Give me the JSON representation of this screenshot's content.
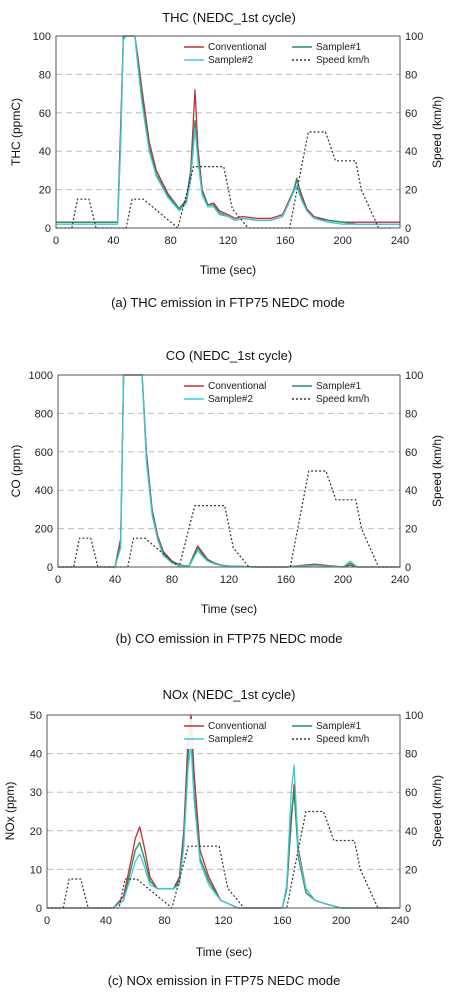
{
  "chart_data": [
    {
      "type": "line",
      "title": "THC (NEDC_1st cycle)",
      "xlabel": "Time (sec)",
      "ylabel": "THC (ppmC)",
      "y2label": "Speed (km/h)",
      "caption": "(a) THC emission in FTP75 NEDC mode",
      "xlim": [
        0,
        240
      ],
      "ylim": [
        0,
        100
      ],
      "y2lim": [
        0,
        100
      ],
      "xticks": [
        "0",
        "40",
        "80",
        "120",
        "160",
        "200",
        "240"
      ],
      "yticks": [
        "0",
        "20",
        "40",
        "60",
        "80",
        "100"
      ],
      "y2ticks": [
        "0",
        "20",
        "40",
        "60",
        "80",
        "100"
      ],
      "legend_position": "top-right",
      "series": [
        {
          "name": "Conventional",
          "color": "#c0303a",
          "style": "solid",
          "axis": "left",
          "x": [
            0,
            43,
            45,
            47,
            49,
            52,
            55,
            57,
            60,
            65,
            70,
            78,
            86,
            91,
            94,
            97,
            99,
            102,
            106,
            110,
            114,
            120,
            125,
            130,
            140,
            150,
            158,
            163,
            166,
            168,
            171,
            175,
            180,
            190,
            200,
            210,
            220,
            240
          ],
          "y": [
            3,
            3,
            50,
            100,
            100,
            100,
            100,
            90,
            72,
            45,
            30,
            18,
            10,
            15,
            30,
            72,
            42,
            20,
            12,
            13,
            9,
            7,
            5,
            6,
            5,
            5,
            7,
            15,
            20,
            25,
            18,
            10,
            6,
            4,
            3,
            3,
            3,
            3
          ]
        },
        {
          "name": "Sample#1",
          "color": "#2e8b57",
          "style": "solid",
          "axis": "left",
          "x": [
            0,
            43,
            45,
            47,
            49,
            52,
            55,
            57,
            60,
            65,
            70,
            78,
            86,
            91,
            94,
            97,
            99,
            102,
            106,
            110,
            114,
            120,
            125,
            130,
            140,
            150,
            158,
            163,
            166,
            168,
            171,
            175,
            180,
            190,
            200,
            210,
            220,
            240
          ],
          "y": [
            3,
            3,
            45,
            100,
            100,
            100,
            100,
            88,
            68,
            42,
            28,
            17,
            10,
            14,
            28,
            56,
            38,
            19,
            12,
            12,
            8,
            6,
            4,
            5,
            4,
            4,
            6,
            14,
            20,
            26,
            16,
            9,
            5,
            4,
            3,
            2,
            2,
            2
          ]
        },
        {
          "name": "Sample#2",
          "color": "#40c8d8",
          "style": "solid",
          "axis": "left",
          "x": [
            0,
            43,
            45,
            47,
            49,
            52,
            55,
            57,
            60,
            65,
            70,
            78,
            86,
            91,
            94,
            97,
            99,
            102,
            106,
            110,
            114,
            120,
            125,
            130,
            140,
            150,
            158,
            163,
            166,
            168,
            171,
            175,
            180,
            190,
            200,
            210,
            220,
            240
          ],
          "y": [
            2,
            2,
            40,
            98,
            100,
            100,
            100,
            85,
            65,
            40,
            27,
            16,
            9,
            13,
            25,
            52,
            35,
            17,
            11,
            11,
            7,
            6,
            4,
            5,
            4,
            4,
            6,
            14,
            19,
            22,
            15,
            9,
            5,
            3,
            2,
            2,
            2,
            2
          ]
        },
        {
          "name": "Speed km/h",
          "color": "#333333",
          "style": "dotted",
          "axis": "right",
          "x": [
            0,
            11,
            15,
            23,
            28,
            49,
            53,
            61,
            85,
            96,
            117,
            123,
            134,
            143,
            155,
            163,
            176,
            188,
            195,
            201,
            209,
            213,
            225,
            234
          ],
          "y": [
            0,
            0,
            15,
            15,
            0,
            0,
            15,
            15,
            0,
            32,
            32,
            10,
            0,
            0,
            0,
            0,
            50,
            50,
            35,
            35,
            35,
            20,
            0,
            0
          ]
        }
      ]
    },
    {
      "type": "line",
      "title": "CO (NEDC_1st cycle)",
      "xlabel": "Time (sec)",
      "ylabel": "CO (ppm)",
      "y2label": "Speed (km/h)",
      "caption": "(b) CO emission in FTP75 NEDC mode",
      "xlim": [
        0,
        240
      ],
      "ylim": [
        0,
        1000
      ],
      "y2lim": [
        0,
        100
      ],
      "xticks": [
        "0",
        "40",
        "80",
        "120",
        "160",
        "200",
        "240"
      ],
      "yticks": [
        "0",
        "200",
        "400",
        "600",
        "800",
        "1000"
      ],
      "y2ticks": [
        "0",
        "20",
        "40",
        "60",
        "80",
        "100"
      ],
      "legend_position": "top-right",
      "series": [
        {
          "name": "Conventional",
          "color": "#c0303a",
          "style": "solid",
          "axis": "left",
          "x": [
            0,
            40,
            44,
            46,
            48,
            52,
            56,
            59,
            62,
            66,
            70,
            74,
            80,
            86,
            92,
            95,
            98,
            101,
            105,
            110,
            115,
            120,
            140,
            160,
            180,
            200,
            205,
            210,
            220,
            240
          ],
          "y": [
            0,
            0,
            150,
            1000,
            1000,
            1000,
            1000,
            1000,
            600,
            300,
            160,
            80,
            30,
            10,
            5,
            60,
            110,
            80,
            40,
            20,
            10,
            5,
            0,
            0,
            15,
            0,
            10,
            0,
            0,
            0
          ]
        },
        {
          "name": "Sample#1",
          "color": "#2e8b57",
          "style": "solid",
          "axis": "left",
          "x": [
            0,
            40,
            44,
            46,
            48,
            52,
            56,
            59,
            62,
            66,
            70,
            74,
            80,
            86,
            92,
            95,
            98,
            101,
            105,
            110,
            115,
            120,
            140,
            160,
            180,
            200,
            205,
            210,
            220,
            240
          ],
          "y": [
            0,
            0,
            120,
            1000,
            1000,
            1000,
            1000,
            1000,
            580,
            290,
            150,
            70,
            25,
            8,
            5,
            55,
            100,
            70,
            35,
            18,
            8,
            5,
            0,
            0,
            10,
            0,
            20,
            0,
            0,
            0
          ]
        },
        {
          "name": "Sample#2",
          "color": "#40c8d8",
          "style": "solid",
          "axis": "left",
          "x": [
            0,
            40,
            44,
            46,
            48,
            52,
            56,
            59,
            62,
            66,
            70,
            74,
            80,
            86,
            92,
            95,
            98,
            101,
            105,
            110,
            115,
            120,
            140,
            160,
            180,
            200,
            205,
            210,
            220,
            240
          ],
          "y": [
            0,
            0,
            100,
            1000,
            1000,
            1000,
            1000,
            1000,
            550,
            270,
            140,
            60,
            20,
            6,
            4,
            45,
            85,
            60,
            30,
            15,
            8,
            4,
            0,
            0,
            8,
            0,
            30,
            0,
            0,
            0
          ]
        },
        {
          "name": "Speed km/h",
          "color": "#333333",
          "style": "dotted",
          "axis": "right",
          "x": [
            0,
            11,
            15,
            23,
            28,
            49,
            53,
            61,
            85,
            96,
            117,
            123,
            134,
            143,
            155,
            163,
            176,
            188,
            195,
            201,
            209,
            213,
            225,
            234
          ],
          "y": [
            0,
            0,
            15,
            15,
            0,
            0,
            15,
            15,
            0,
            32,
            32,
            10,
            0,
            0,
            0,
            0,
            50,
            50,
            35,
            35,
            35,
            20,
            0,
            0
          ]
        }
      ]
    },
    {
      "type": "line",
      "title": "NOx (NEDC_1st cycle)",
      "xlabel": "Time (sec)",
      "ylabel": "NOx (ppm)",
      "y2label": "Speed (km/h)",
      "caption": "(c) NOx emission in FTP75 NEDC mode",
      "xlim": [
        0,
        240
      ],
      "ylim": [
        0,
        50
      ],
      "y2lim": [
        0,
        100
      ],
      "xticks": [
        "0",
        "40",
        "80",
        "120",
        "160",
        "200",
        "240"
      ],
      "yticks": [
        "0",
        "10",
        "20",
        "30",
        "40",
        "50"
      ],
      "y2ticks": [
        "0",
        "20",
        "40",
        "60",
        "80",
        "100"
      ],
      "legend_position": "top-right",
      "series": [
        {
          "name": "Conventional",
          "color": "#c0303a",
          "style": "solid",
          "axis": "left",
          "x": [
            0,
            45,
            52,
            57,
            60,
            63,
            66,
            70,
            75,
            80,
            86,
            90,
            93,
            96,
            98,
            100,
            104,
            110,
            118,
            130,
            150,
            160,
            163,
            166,
            168,
            171,
            176,
            182,
            190,
            200,
            210,
            240
          ],
          "y": [
            0,
            0,
            3,
            12,
            18,
            21,
            16,
            8,
            5,
            5,
            5,
            8,
            20,
            45,
            50,
            35,
            15,
            8,
            2,
            0,
            0,
            0,
            5,
            22,
            32,
            15,
            5,
            2,
            1,
            0,
            0,
            0
          ]
        },
        {
          "name": "Sample#1",
          "color": "#2e8b57",
          "style": "solid",
          "axis": "left",
          "x": [
            0,
            45,
            52,
            57,
            60,
            63,
            66,
            70,
            75,
            80,
            86,
            90,
            93,
            96,
            98,
            100,
            104,
            110,
            118,
            130,
            150,
            160,
            163,
            166,
            168,
            171,
            176,
            182,
            190,
            200,
            210,
            240
          ],
          "y": [
            0,
            0,
            2,
            10,
            15,
            17,
            13,
            7,
            5,
            5,
            5,
            7,
            18,
            40,
            47,
            30,
            13,
            7,
            2,
            0,
            0,
            0,
            5,
            24,
            30,
            13,
            4,
            2,
            1,
            0,
            0,
            0
          ]
        },
        {
          "name": "Sample#2",
          "color": "#40c8d8",
          "style": "solid",
          "axis": "left",
          "x": [
            0,
            45,
            52,
            57,
            60,
            63,
            66,
            70,
            75,
            80,
            86,
            90,
            93,
            96,
            98,
            100,
            104,
            110,
            118,
            130,
            150,
            160,
            163,
            166,
            168,
            171,
            176,
            182,
            190,
            200,
            210,
            240
          ],
          "y": [
            0,
            0,
            2,
            8,
            12,
            14,
            11,
            6,
            5,
            5,
            5,
            6,
            16,
            37,
            42,
            28,
            12,
            6,
            2,
            0,
            0,
            0,
            6,
            30,
            37,
            14,
            5,
            2,
            1,
            0,
            0,
            0
          ]
        },
        {
          "name": "Speed km/h",
          "color": "#333333",
          "style": "dotted",
          "axis": "right",
          "x": [
            0,
            11,
            15,
            23,
            28,
            49,
            53,
            61,
            85,
            96,
            117,
            123,
            134,
            143,
            155,
            163,
            176,
            188,
            195,
            201,
            209,
            213,
            225,
            234
          ],
          "y": [
            0,
            0,
            15,
            15,
            0,
            0,
            15,
            15,
            0,
            32,
            32,
            10,
            0,
            0,
            0,
            0,
            50,
            50,
            35,
            35,
            35,
            20,
            0,
            0
          ]
        }
      ]
    }
  ]
}
